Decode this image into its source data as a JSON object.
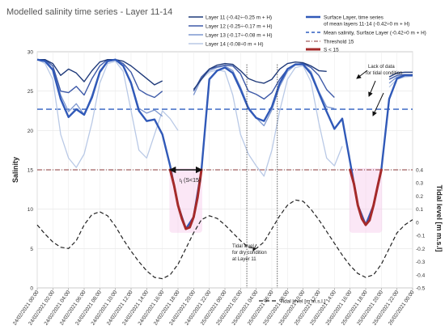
{
  "chart_data": {
    "type": "line",
    "title": "Modelled salinity time series - Layer 11-14",
    "ylabel": "Salinity",
    "y2label": "Tidal level [m m.s.l]",
    "ylim": [
      0,
      30
    ],
    "y2lim": [
      -0.5,
      0.4
    ],
    "yticks": [
      "0",
      "5",
      "10",
      "15",
      "20",
      "25",
      "30"
    ],
    "y2ticks": [
      "0.4",
      "0.3",
      "0.2",
      "0.1",
      "0",
      "-0.1",
      "-0.2",
      "-0.3",
      "-0.4",
      "-0.5"
    ],
    "xlim": [
      0,
      48
    ],
    "x_ticklabels": [
      "24/02/2021 00:00",
      "24/02/2021 02:00",
      "24/02/2021 04:00",
      "24/02/2021 06:00",
      "24/02/2021 08:00",
      "24/02/2021 10:00",
      "24/02/2021 12:00",
      "24/02/2021 14:00",
      "24/02/2021 16:00",
      "24/02/2021 18:00",
      "24/02/2021 20:00",
      "24/02/2021 22:00",
      "25/02/2021 00:00",
      "25/02/2021 02:00",
      "25/02/2021 04:00",
      "25/02/2021 06:00",
      "25/02/2021 08:00",
      "25/02/2021 10:00",
      "25/02/2021 12:00",
      "25/02/2021 14:00",
      "25/02/2021 16:00",
      "25/02/2021 18:00",
      "25/02/2021 20:00",
      "25/02/2021 22:00",
      "26/02/2021 00:00"
    ],
    "legend": {
      "layer11": "Layer 11 (-0.42÷-0.25 m + H)",
      "layer12": "Layer 12 (-0.25÷-0.17 m + H)",
      "layer13": "Layer 13 (-0.17÷-0.08 m + H)",
      "layer14": "Layer 14 (-0.08÷0 m + H)",
      "surface_1": "Surface Layer, time series",
      "surface_2": "of mean layers 11-14 (-0.42÷0 m + H)",
      "mean": "Mean salinity, Surface Layer (-0.42÷0 m + H)",
      "threshold": "Threshold 15",
      "slt15": "S < 15",
      "tidal": "Tidal level [m m.s.l.]"
    },
    "colors": {
      "layer11": "#1f3a7a",
      "layer12": "#3e5aa8",
      "layer13": "#7d97cf",
      "layer14": "#b9c9e6",
      "surface": "#3059b8",
      "mean": "#2e5fc0",
      "threshold": "#8b3a3a",
      "slt15": "#a52a2a",
      "highlight": "#f6c9ea",
      "tidal": "#222222"
    },
    "annotations": {
      "lack_1": "Lack of data",
      "lack_2": "for tidal condition",
      "dry_1": "Tidal level",
      "dry_2": "for dry condition",
      "dry_3": "at Layer 11",
      "tl_main": "t",
      "tl_sub": "l",
      "tl_rest": "(S<15)"
    },
    "mean_salinity": 22.7,
    "threshold_value": 15,
    "series": {
      "layer11": [
        [
          0,
          29
        ],
        [
          1,
          29
        ],
        [
          2,
          28.5
        ],
        [
          3,
          27
        ],
        [
          4,
          27.8
        ],
        [
          5,
          27.3
        ],
        [
          6,
          26.2
        ],
        [
          7,
          27.6
        ],
        [
          8,
          28.7
        ],
        [
          9,
          29
        ],
        [
          10,
          29
        ],
        [
          11,
          28.8
        ],
        [
          12,
          28.2
        ],
        [
          13,
          27.4
        ],
        [
          14,
          26.6
        ],
        [
          15,
          25.8
        ],
        [
          16,
          26.3
        ],
        [
          null,
          null
        ],
        [
          20,
          25.2
        ],
        [
          21,
          26.5
        ],
        [
          22,
          27.8
        ],
        [
          23,
          28.3
        ],
        [
          24,
          28.5
        ],
        [
          25,
          28.4
        ],
        [
          26,
          27.6
        ],
        [
          27,
          26.6
        ],
        [
          28,
          26.2
        ],
        [
          29,
          26
        ],
        [
          30,
          26.5
        ],
        [
          31,
          27.8
        ],
        [
          32,
          28.5
        ],
        [
          33,
          28.7
        ],
        [
          34,
          28.6
        ],
        [
          35,
          28.2
        ],
        [
          36,
          27.6
        ],
        [
          37,
          27.5
        ],
        [
          null,
          null
        ],
        [
          45,
          26.8
        ],
        [
          46,
          27.3
        ],
        [
          47,
          27.4
        ],
        [
          48,
          27.4
        ]
      ],
      "layer12": [
        [
          0,
          29
        ],
        [
          1,
          29
        ],
        [
          2,
          28.2
        ],
        [
          3,
          25
        ],
        [
          4,
          24.8
        ],
        [
          5,
          25.6
        ],
        [
          6,
          24.5
        ],
        [
          7,
          26.6
        ],
        [
          8,
          28.2
        ],
        [
          9,
          29
        ],
        [
          10,
          29
        ],
        [
          11,
          28.5
        ],
        [
          12,
          27.4
        ],
        [
          13,
          25.2
        ],
        [
          14,
          24.6
        ],
        [
          15,
          24.2
        ],
        [
          16,
          25
        ],
        [
          null,
          null
        ],
        [
          20,
          25
        ],
        [
          21,
          26.8
        ],
        [
          22,
          27.8
        ],
        [
          23,
          28.1
        ],
        [
          24,
          28.3
        ],
        [
          25,
          28.2
        ],
        [
          26,
          27.2
        ],
        [
          27,
          25
        ],
        [
          28,
          24.6
        ],
        [
          29,
          24
        ],
        [
          30,
          24.8
        ],
        [
          31,
          26.5
        ],
        [
          32,
          27.8
        ],
        [
          33,
          28.4
        ],
        [
          34,
          28.5
        ],
        [
          35,
          28
        ],
        [
          36,
          27
        ],
        [
          37,
          25.2
        ],
        [
          38,
          24.2
        ],
        [
          null,
          null
        ],
        [
          45,
          26.5
        ],
        [
          46,
          27
        ],
        [
          47,
          27.1
        ],
        [
          48,
          27.1
        ]
      ],
      "layer13": [
        [
          0,
          29
        ],
        [
          1,
          29
        ],
        [
          2,
          27.8
        ],
        [
          3,
          24.5
        ],
        [
          4,
          22.4
        ],
        [
          5,
          23.4
        ],
        [
          6,
          22
        ],
        [
          7,
          24.5
        ],
        [
          8,
          27.6
        ],
        [
          9,
          28.8
        ],
        [
          10,
          29
        ],
        [
          11,
          28.2
        ],
        [
          12,
          26.2
        ],
        [
          13,
          22.8
        ],
        [
          14,
          22.2
        ],
        [
          15,
          22.6
        ],
        [
          16,
          21.8
        ],
        [
          null,
          null
        ],
        [
          20,
          24.5
        ],
        [
          21,
          26.7
        ],
        [
          22,
          27.6
        ],
        [
          23,
          28
        ],
        [
          24,
          28.2
        ],
        [
          25,
          27.6
        ],
        [
          26,
          25.5
        ],
        [
          27,
          23
        ],
        [
          28,
          21.6
        ],
        [
          29,
          20.6
        ],
        [
          30,
          22.6
        ],
        [
          31,
          25.6
        ],
        [
          32,
          27.5
        ],
        [
          33,
          28.3
        ],
        [
          34,
          28.4
        ],
        [
          35,
          27.5
        ],
        [
          36,
          25
        ],
        [
          37,
          23
        ],
        [
          38,
          22.8
        ],
        [
          null,
          null
        ],
        [
          45,
          26
        ],
        [
          46,
          26.8
        ],
        [
          47,
          27
        ],
        [
          48,
          27
        ]
      ],
      "layer14": [
        [
          0,
          29
        ],
        [
          1,
          28.5
        ],
        [
          2,
          26.5
        ],
        [
          3,
          19.5
        ],
        [
          4,
          16.5
        ],
        [
          5,
          15.3
        ],
        [
          6,
          17
        ],
        [
          7,
          21
        ],
        [
          8,
          26
        ],
        [
          9,
          28.5
        ],
        [
          10,
          28.8
        ],
        [
          11,
          27.5
        ],
        [
          12,
          22.5
        ],
        [
          13,
          17.5
        ],
        [
          14,
          16.5
        ],
        [
          15,
          19.5
        ],
        [
          16,
          22.5
        ],
        [
          17,
          21.5
        ],
        [
          18,
          20
        ],
        [
          null,
          null
        ],
        [
          20,
          24.5
        ],
        [
          21,
          26.5
        ],
        [
          22,
          27.4
        ],
        [
          23,
          27.7
        ],
        [
          24,
          27.5
        ],
        [
          25,
          24.5
        ],
        [
          26,
          19.5
        ],
        [
          27,
          17
        ],
        [
          28,
          15.5
        ],
        [
          29,
          14.2
        ],
        [
          30,
          17.5
        ],
        [
          31,
          22.5
        ],
        [
          32,
          26.5
        ],
        [
          33,
          28
        ],
        [
          34,
          28.2
        ],
        [
          35,
          26.2
        ],
        [
          36,
          21
        ],
        [
          37,
          16.5
        ],
        [
          38,
          15.5
        ],
        [
          39,
          18
        ],
        [
          null,
          null
        ],
        [
          45,
          25.5
        ],
        [
          46,
          26.5
        ],
        [
          47,
          26.8
        ],
        [
          48,
          26.9
        ]
      ],
      "surface": [
        [
          0,
          29
        ],
        [
          1,
          28.8
        ],
        [
          2,
          27.7
        ],
        [
          3,
          24
        ],
        [
          4,
          21.7
        ],
        [
          5,
          22.7
        ],
        [
          6,
          22
        ],
        [
          7,
          24.2
        ],
        [
          8,
          27.4
        ],
        [
          9,
          28.8
        ],
        [
          10,
          29
        ],
        [
          11,
          28.2
        ],
        [
          12,
          26
        ],
        [
          13,
          22.5
        ],
        [
          14,
          21.2
        ],
        [
          15,
          21.4
        ],
        [
          16,
          19.5
        ],
        [
          17,
          15.5
        ],
        [
          18,
          10.5
        ],
        [
          19,
          7.5
        ],
        [
          20,
          9
        ],
        [
          21,
          15
        ],
        [
          22,
          26.5
        ],
        [
          23,
          27.6
        ],
        [
          24,
          28
        ],
        [
          25,
          27.3
        ],
        [
          26,
          25.2
        ],
        [
          27,
          22.8
        ],
        [
          28,
          21.6
        ],
        [
          29,
          21.2
        ],
        [
          30,
          23
        ],
        [
          31,
          26
        ],
        [
          32,
          27.8
        ],
        [
          33,
          28.4
        ],
        [
          34,
          28.4
        ],
        [
          35,
          27.2
        ],
        [
          36,
          24.8
        ],
        [
          37,
          22.4
        ],
        [
          38,
          20.2
        ],
        [
          39,
          21.5
        ],
        [
          40,
          16
        ],
        [
          41,
          10.5
        ],
        [
          42,
          8
        ],
        [
          43,
          10.5
        ],
        [
          44,
          15
        ],
        [
          45,
          24
        ],
        [
          46,
          26.6
        ],
        [
          47,
          27
        ],
        [
          48,
          27
        ]
      ],
      "slt15": [
        [
          17,
          15
        ],
        [
          17.5,
          13
        ],
        [
          18,
          10.5
        ],
        [
          18.5,
          8.8
        ],
        [
          19,
          7.5
        ],
        [
          19.5,
          7.7
        ],
        [
          20,
          9
        ],
        [
          20.5,
          11.5
        ],
        [
          21,
          15
        ],
        [
          null,
          null
        ],
        [
          40,
          15
        ],
        [
          40.5,
          13.2
        ],
        [
          41,
          10.5
        ],
        [
          41.5,
          8.8
        ],
        [
          42,
          8
        ],
        [
          42.5,
          8.6
        ],
        [
          43,
          10.5
        ],
        [
          43.5,
          12.8
        ],
        [
          44,
          15
        ]
      ],
      "tidal": [
        [
          0,
          -0.02
        ],
        [
          1,
          -0.09
        ],
        [
          2,
          -0.15
        ],
        [
          3,
          -0.19
        ],
        [
          4,
          -0.2
        ],
        [
          5,
          -0.14
        ],
        [
          6,
          -0.02
        ],
        [
          7,
          0.06
        ],
        [
          8,
          0.08
        ],
        [
          9,
          0.05
        ],
        [
          10,
          -0.03
        ],
        [
          11,
          -0.13
        ],
        [
          12,
          -0.22
        ],
        [
          13,
          -0.3
        ],
        [
          14,
          -0.37
        ],
        [
          15,
          -0.42
        ],
        [
          16,
          -0.43
        ],
        [
          17,
          -0.4
        ],
        [
          18,
          -0.32
        ],
        [
          19,
          -0.2
        ],
        [
          20,
          -0.08
        ],
        [
          21,
          0.02
        ],
        [
          22,
          0.05
        ],
        [
          23,
          0.03
        ],
        [
          24,
          -0.02
        ],
        [
          25,
          -0.08
        ],
        [
          26,
          -0.14
        ],
        [
          27,
          -0.19
        ],
        [
          28,
          -0.2
        ],
        [
          29,
          -0.15
        ],
        [
          30,
          -0.05
        ],
        [
          31,
          0.05
        ],
        [
          32,
          0.13
        ],
        [
          33,
          0.17
        ],
        [
          34,
          0.16
        ],
        [
          35,
          0.1
        ],
        [
          36,
          0.02
        ],
        [
          37,
          -0.07
        ],
        [
          38,
          -0.16
        ],
        [
          39,
          -0.25
        ],
        [
          40,
          -0.33
        ],
        [
          41,
          -0.39
        ],
        [
          42,
          -0.42
        ],
        [
          43,
          -0.4
        ],
        [
          44,
          -0.32
        ],
        [
          45,
          -0.2
        ],
        [
          46,
          -0.08
        ],
        [
          47,
          -0.02
        ],
        [
          48,
          0.02
        ]
      ]
    }
  }
}
